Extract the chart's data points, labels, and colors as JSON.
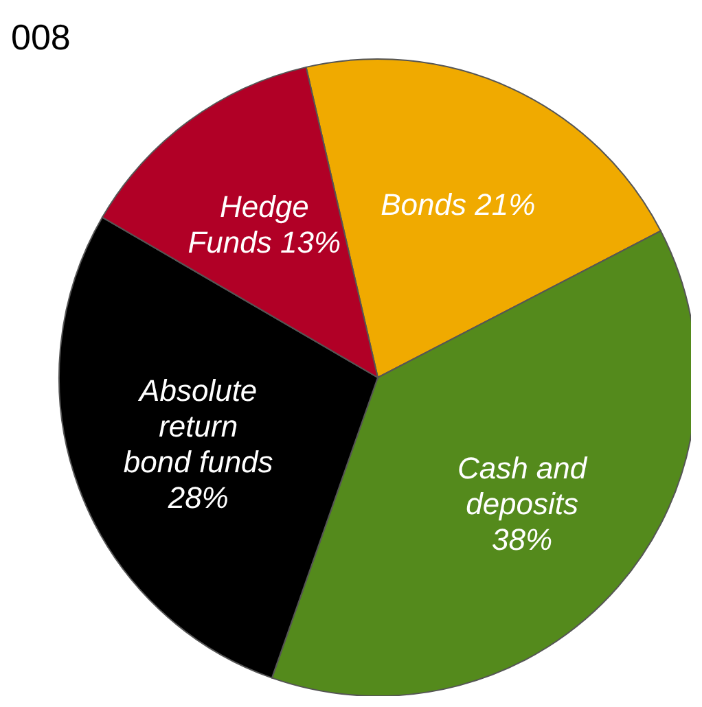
{
  "chart_data": {
    "type": "pie",
    "title": "008",
    "categories": [
      "Bonds",
      "Cash and deposits",
      "Absolute return bond funds",
      "Hedge Funds"
    ],
    "values": [
      21,
      38,
      28,
      13
    ],
    "value_labels": [
      "21%",
      "38%",
      "28%",
      "13%"
    ],
    "colors": [
      "#f0aa00",
      "#548a1c",
      "#000000",
      "#b10026"
    ],
    "legend": false
  }
}
